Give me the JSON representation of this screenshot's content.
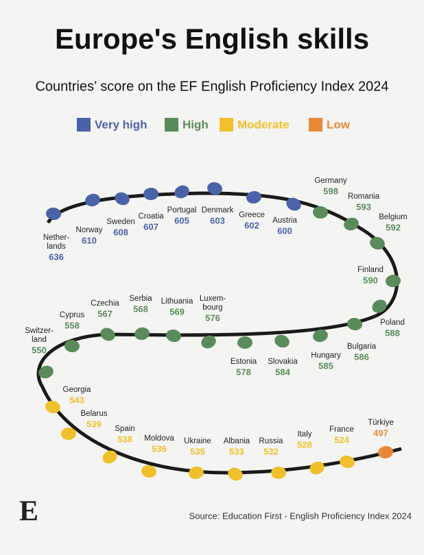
{
  "chart_data": {
    "type": "snake",
    "title": "Europe's English skills",
    "subtitle": "Countries’ score on the EF English Proficiency Index 2024",
    "series": [
      {
        "name": "Very high",
        "color": "#4a62a8",
        "categories": [
          "Nether-\nlands",
          "Norway",
          "Sweden",
          "Croatia",
          "Portugal",
          "Denmark",
          "Greece",
          "Austria"
        ],
        "values": [
          636,
          610,
          608,
          607,
          605,
          603,
          602,
          600
        ]
      },
      {
        "name": "High",
        "color": "#5a8b5a",
        "categories": [
          "Germany",
          "Romania",
          "Belgium",
          "Finland",
          "Poland",
          "Bulgaria",
          "Hungary",
          "Slovakia",
          "Estonia",
          "Luxem-\nbourg",
          "Lithuania",
          "Serbia",
          "Czechia",
          "Cyprus",
          "Switzer-\nland"
        ],
        "values": [
          598,
          593,
          592,
          590,
          588,
          586,
          585,
          584,
          578,
          576,
          569,
          568,
          567,
          558,
          550
        ]
      },
      {
        "name": "Moderate",
        "color": "#f0c02c",
        "categories": [
          "Georgia",
          "Belarus",
          "Spain",
          "Moldova",
          "Ukraine",
          "Albania",
          "Russia",
          "Italy",
          "France"
        ],
        "values": [
          543,
          539,
          538,
          536,
          535,
          533,
          532,
          528,
          524
        ]
      },
      {
        "name": "Low",
        "color": "#e8893a",
        "categories": [
          "Türkiye"
        ],
        "values": [
          497
        ]
      }
    ],
    "logo": "E",
    "source": "Source: Education First - English Proficiency Index 2024"
  }
}
